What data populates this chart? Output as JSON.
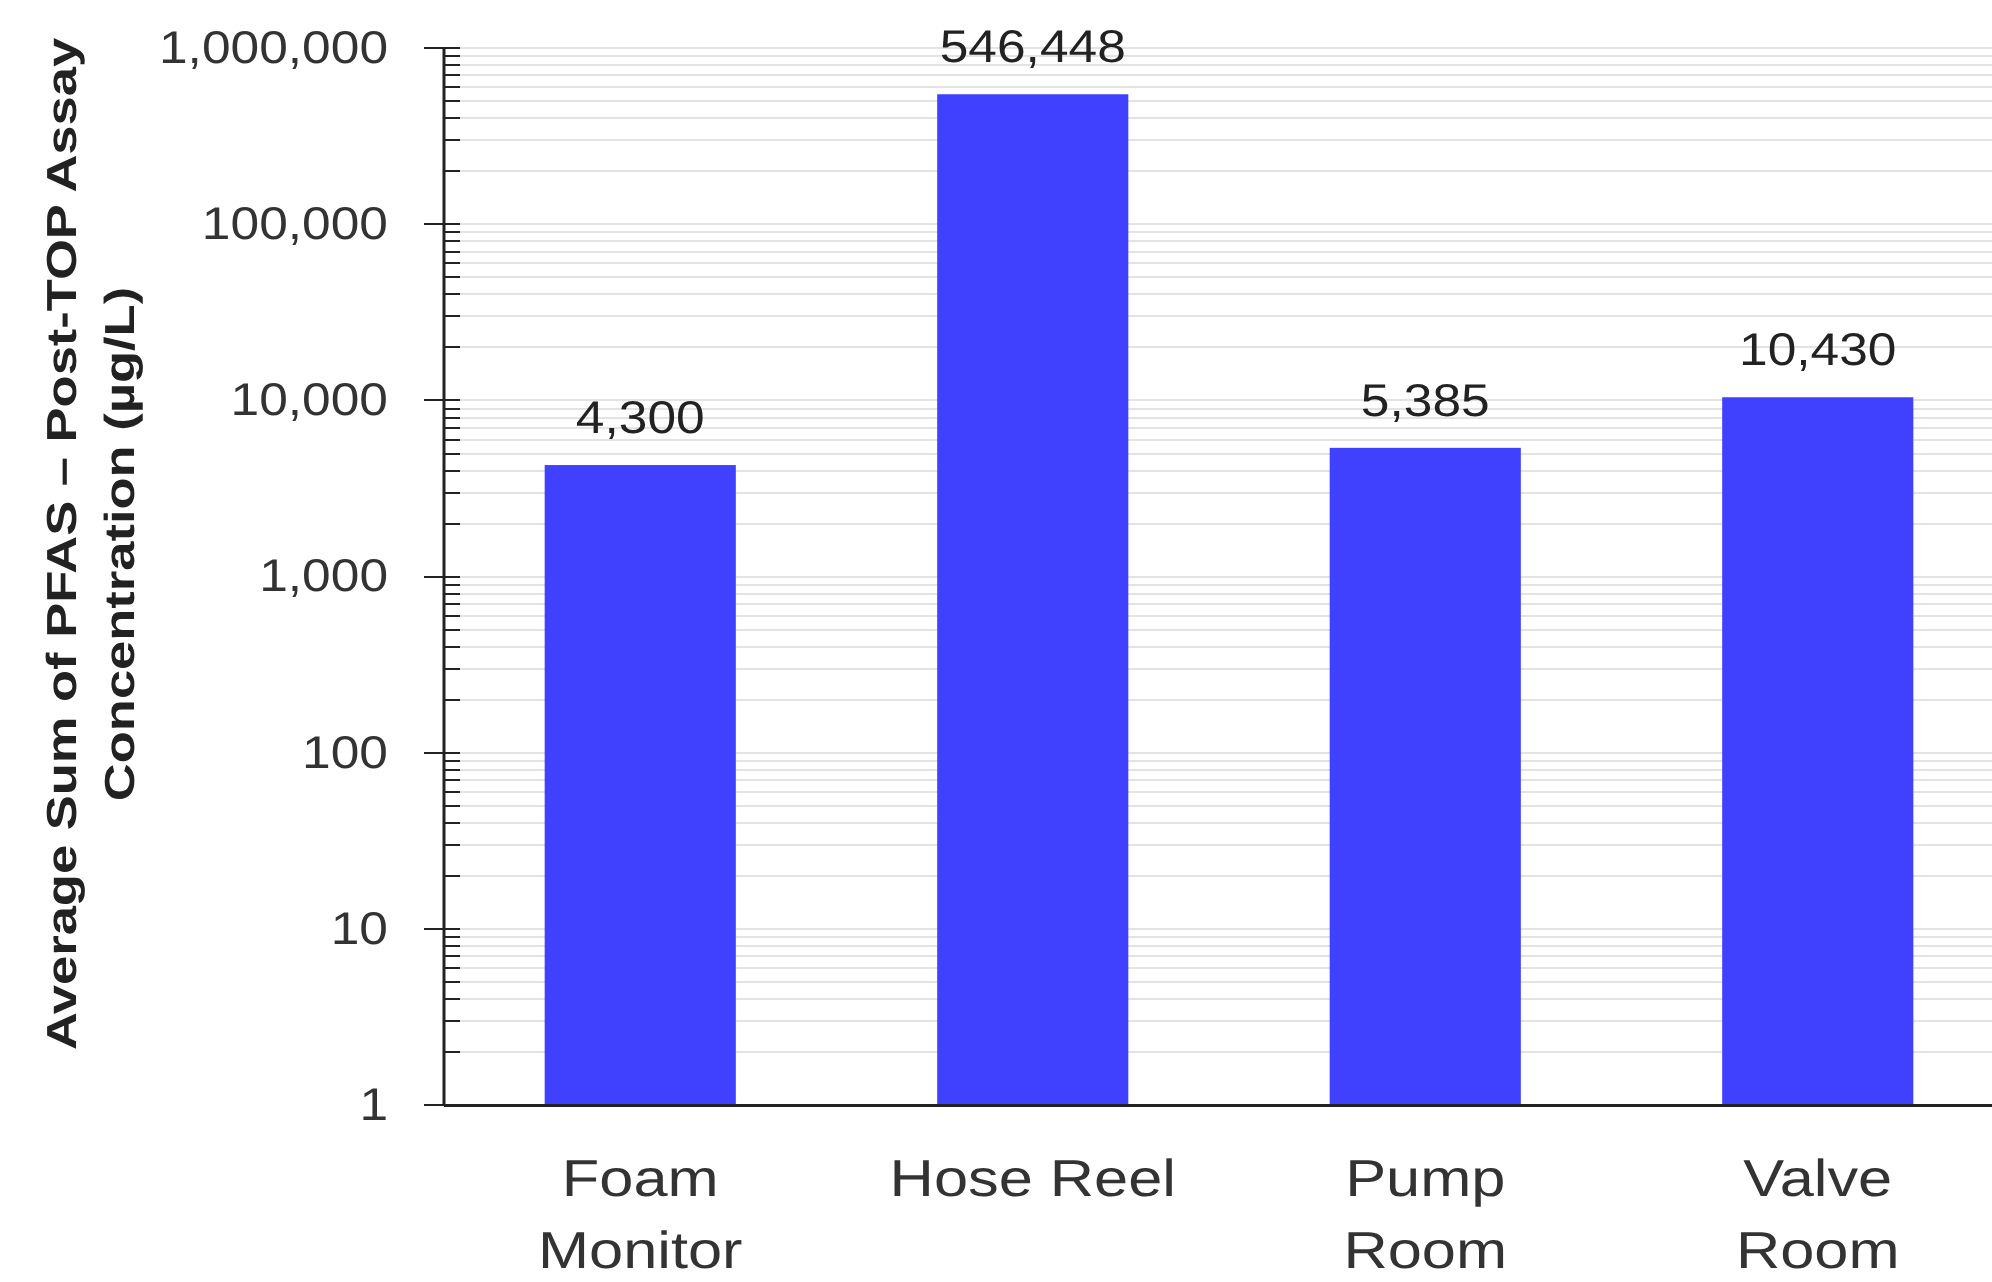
{
  "chart_data": {
    "type": "bar",
    "ylabel": "Average Sum of PFAS – Post-TOP Assay\nConcentration (µg/L)",
    "categories": [
      "Foam\nMonitor",
      "Hose Reel",
      "Pump\nRoom",
      "Valve\nRoom"
    ],
    "values": [
      4300,
      546448,
      5385,
      10430
    ],
    "value_labels": [
      "4,300",
      "546,448",
      "5,385",
      "10,430"
    ],
    "color": "#4040ff",
    "log": true,
    "ylim": [
      1,
      1000000
    ],
    "yticks": [
      1,
      {
        "value": 2,
        "label": null
      },
      {
        "value": 3,
        "label": null
      },
      {
        "value": 4,
        "label": null
      },
      {
        "value": 5,
        "label": null
      },
      {
        "value": 6,
        "label": null
      },
      {
        "value": 7,
        "label": null
      },
      {
        "value": 8,
        "label": null
      },
      {
        "value": 9,
        "label": null
      },
      10,
      {
        "value": 20,
        "label": null
      },
      {
        "value": 30,
        "label": null
      },
      {
        "value": 40,
        "label": null
      },
      {
        "value": 50,
        "label": null
      },
      {
        "value": 60,
        "label": null
      },
      {
        "value": 70,
        "label": null
      },
      {
        "value": 80,
        "label": null
      },
      {
        "value": 90,
        "label": null
      },
      100,
      {
        "value": 200,
        "label": null
      },
      {
        "value": 300,
        "label": null
      },
      {
        "value": 400,
        "label": null
      },
      {
        "value": 500,
        "label": null
      },
      {
        "value": 600,
        "label": null
      },
      {
        "value": 700,
        "label": null
      },
      {
        "value": 800,
        "label": null
      },
      {
        "value": 900,
        "label": null
      },
      {
        "value": 1000,
        "label": "1,000"
      },
      {
        "value": 2000,
        "label": null
      },
      {
        "value": 3000,
        "label": null
      },
      {
        "value": 4000,
        "label": null
      },
      {
        "value": 5000,
        "label": null
      },
      {
        "value": 6000,
        "label": null
      },
      {
        "value": 7000,
        "label": null
      },
      {
        "value": 8000,
        "label": null
      },
      {
        "value": 9000,
        "label": null
      },
      {
        "value": 10000,
        "label": "10,000"
      },
      {
        "value": 20000,
        "label": null
      },
      {
        "value": 30000,
        "label": null
      },
      {
        "value": 40000,
        "label": null
      },
      {
        "value": 50000,
        "label": null
      },
      {
        "value": 60000,
        "label": null
      },
      {
        "value": 70000,
        "label": null
      },
      {
        "value": 80000,
        "label": null
      },
      {
        "value": 90000,
        "label": null
      },
      {
        "value": 100000,
        "label": "100,000"
      },
      {
        "value": 200000,
        "label": null
      },
      {
        "value": 300000,
        "label": null
      },
      {
        "value": 400000,
        "label": null
      },
      {
        "value": 500000,
        "label": null
      },
      {
        "value": 600000,
        "label": null
      },
      {
        "value": 700000,
        "label": null
      },
      {
        "value": 800000,
        "label": null
      },
      {
        "value": 900000,
        "label": null
      },
      {
        "value": 1000000,
        "label": "1,000,000"
      }
    ],
    "grid": "y"
  }
}
